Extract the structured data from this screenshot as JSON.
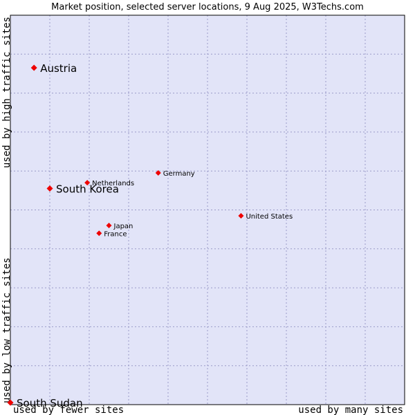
{
  "chart_data": {
    "type": "scatter",
    "title": "Market position, selected server locations, 9 Aug 2025, W3Techs.com",
    "xlabel_low": "used by fewer sites",
    "xlabel_high": "used by many sites",
    "ylabel_low": "used by low traffic sites",
    "ylabel_high": "used by high traffic sites",
    "xlim": [
      0,
      100
    ],
    "ylim": [
      0,
      100
    ],
    "grid": true,
    "points": [
      {
        "name": "Austria",
        "x": 6,
        "y": 86.5,
        "size": "large"
      },
      {
        "name": "South Korea",
        "x": 10,
        "y": 55.5,
        "size": "large"
      },
      {
        "name": "Netherlands",
        "x": 19.5,
        "y": 57,
        "size": "small"
      },
      {
        "name": "Germany",
        "x": 37.5,
        "y": 59.5,
        "size": "small"
      },
      {
        "name": "United States",
        "x": 58.5,
        "y": 48.5,
        "size": "small"
      },
      {
        "name": "Japan",
        "x": 25,
        "y": 46,
        "size": "small"
      },
      {
        "name": "France",
        "x": 22.5,
        "y": 44,
        "size": "small"
      },
      {
        "name": "South Sudan",
        "x": 0,
        "y": 0.5,
        "size": "large"
      }
    ]
  },
  "colors": {
    "plot_bg": "#e2e4f8",
    "grid": "#9a9ac8",
    "marker": "#ee0000",
    "border": "#000000"
  }
}
